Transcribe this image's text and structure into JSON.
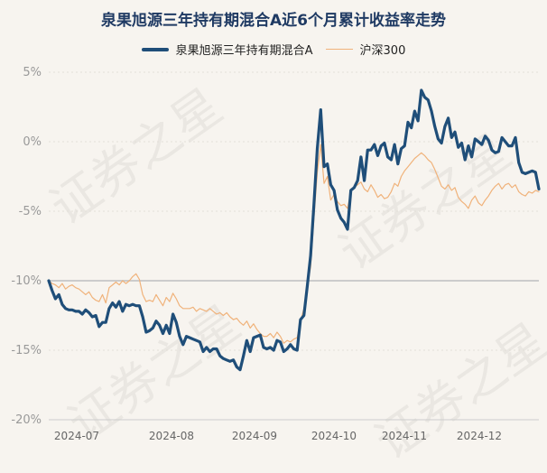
{
  "chart_data": {
    "type": "line",
    "title": "泉果旭源三年持有期混合A近6个月累计收益率走势",
    "xlabel": "",
    "ylabel": "",
    "ylim": [
      -20,
      5
    ],
    "y_ticks": [
      "5%",
      "0%",
      "-5%",
      "-10%",
      "-15%",
      "-20%"
    ],
    "x_ticks": [
      "2024-07",
      "2024-08",
      "2024-09",
      "2024-10",
      "2024-11",
      "2024-12"
    ],
    "grid": true,
    "legend_position": "top",
    "colors": {
      "main": "#1f4e79",
      "bench": "#f0b27a",
      "ref": "#cccccc"
    },
    "series": [
      {
        "name": "泉果旭源三年持有期混合A",
        "values": [
          -10.0,
          -10.7,
          -11.3,
          -11.0,
          -11.7,
          -12.0,
          -12.1,
          -12.1,
          -12.2,
          -12.2,
          -12.4,
          -12.1,
          -12.3,
          -12.6,
          -12.5,
          -13.3,
          -13.0,
          -13.0,
          -12.0,
          -11.6,
          -11.9,
          -11.5,
          -12.2,
          -11.7,
          -11.8,
          -11.7,
          -11.8,
          -11.8,
          -12.6,
          -13.7,
          -13.6,
          -13.4,
          -12.9,
          -13.2,
          -13.8,
          -13.2,
          -13.8,
          -12.4,
          -13.0,
          -14.0,
          -14.6,
          -14.0,
          -14.1,
          -14.2,
          -14.3,
          -14.4,
          -15.1,
          -14.8,
          -15.1,
          -14.9,
          -14.9,
          -15.4,
          -15.6,
          -15.7,
          -15.8,
          -15.7,
          -16.2,
          -16.4,
          -15.4,
          -14.3,
          -15.1,
          -14.1,
          -14.0,
          -13.9,
          -14.8,
          -14.9,
          -14.8,
          -15.0,
          -14.3,
          -14.4,
          -15.1,
          -14.9,
          -14.6,
          -14.9,
          -15.0,
          -12.8,
          -12.5,
          -10.4,
          -8.2,
          -4.5,
          -0.5,
          2.3,
          -1.8,
          -1.6,
          -3.1,
          -3.5,
          -4.9,
          -5.5,
          -5.8,
          -6.3,
          -3.5,
          -3.3,
          -2.8,
          -1.1,
          -2.8,
          -0.6,
          -0.6,
          -0.2,
          -1.0,
          -0.3,
          -0.1,
          -1.1,
          -1.3,
          -0.2,
          -1.6,
          -0.5,
          -0.3,
          1.4,
          1.0,
          2.2,
          1.5,
          3.7,
          3.2,
          3.0,
          2.2,
          1.1,
          0.2,
          -0.1,
          1.1,
          1.7,
          0.3,
          0.7,
          -0.4,
          -0.1,
          -1.3,
          -0.3,
          -1.1,
          0.2,
          0.0,
          -0.2,
          0.4,
          0.1,
          -0.6,
          -0.8,
          -0.7,
          0.3,
          0.0,
          -0.3,
          -0.3,
          0.3,
          -1.5,
          -2.2,
          -2.3,
          -2.2,
          -2.1,
          -2.2,
          -3.4
        ]
      },
      {
        "name": "沪深300",
        "values": [
          -10.0,
          -10.2,
          -10.3,
          -10.5,
          -10.2,
          -10.6,
          -10.4,
          -10.3,
          -10.5,
          -10.6,
          -10.8,
          -11.0,
          -10.8,
          -11.2,
          -11.4,
          -11.5,
          -11.0,
          -11.6,
          -10.5,
          -10.3,
          -10.1,
          -10.3,
          -10.0,
          -10.2,
          -10.0,
          -9.7,
          -9.5,
          -9.9,
          -11.0,
          -11.5,
          -11.4,
          -11.5,
          -11.0,
          -11.4,
          -11.8,
          -11.2,
          -11.5,
          -10.9,
          -11.3,
          -11.8,
          -12.0,
          -12.0,
          -12.0,
          -11.9,
          -12.2,
          -12.0,
          -12.1,
          -12.2,
          -12.0,
          -12.2,
          -12.4,
          -12.3,
          -12.5,
          -12.3,
          -12.6,
          -12.8,
          -12.7,
          -13.0,
          -13.2,
          -12.9,
          -13.4,
          -13.1,
          -13.5,
          -13.8,
          -14.0,
          -14.0,
          -13.8,
          -14.1,
          -13.7,
          -14.0,
          -14.5,
          -14.3,
          -14.4,
          -14.2,
          -14.1,
          -12.9,
          -12.0,
          -10.5,
          -9.0,
          -5.5,
          -2.2,
          -0.2,
          -3.0,
          -2.5,
          -4.2,
          -3.8,
          -4.3,
          -4.6,
          -4.5,
          -4.8,
          -3.6,
          -3.3,
          -3.1,
          -2.9,
          -3.4,
          -3.6,
          -3.1,
          -3.5,
          -4.0,
          -3.8,
          -4.1,
          -4.0,
          -3.6,
          -3.0,
          -3.2,
          -2.5,
          -2.1,
          -1.8,
          -1.5,
          -1.2,
          -1.0,
          -0.8,
          -1.0,
          -1.3,
          -1.5,
          -2.0,
          -2.6,
          -3.2,
          -3.4,
          -3.1,
          -3.5,
          -3.3,
          -4.0,
          -4.3,
          -4.5,
          -4.8,
          -4.2,
          -3.9,
          -4.4,
          -4.6,
          -4.2,
          -3.9,
          -3.5,
          -3.2,
          -3.0,
          -3.4,
          -3.1,
          -3.0,
          -3.3,
          -3.1,
          -3.6,
          -3.8,
          -3.9,
          -3.6,
          -3.7,
          -3.5,
          -3.6
        ]
      }
    ]
  }
}
